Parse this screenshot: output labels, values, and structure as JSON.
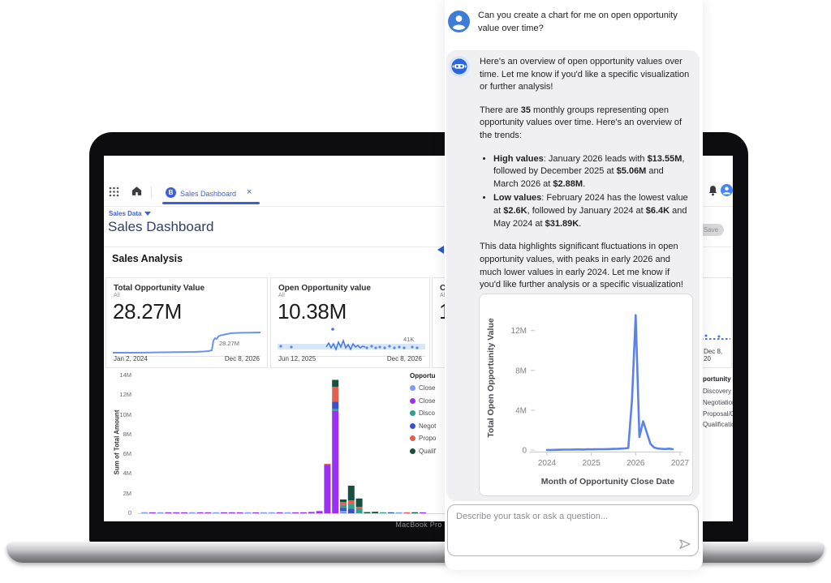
{
  "laptop": {
    "label": "MacBook Pro"
  },
  "dashboard": {
    "tab": {
      "label": "Sales Dashboard",
      "close": "×",
      "logo_letter": "B"
    },
    "breadcrumb": "Sales Data",
    "title": "Sales Dashboard",
    "save_label": "Save",
    "section_title": "Sales Analysis",
    "cards": [
      {
        "title": "Total Opportunity Value",
        "subtitle": "All",
        "value": "28.27M",
        "annotation": "28.27M",
        "date_start": "Jan 2, 2024",
        "date_end": "Dec 8, 2026"
      },
      {
        "title": "Open Opportunity value",
        "subtitle": "All",
        "value": "10.38M",
        "annotation": "41K",
        "date_start": "Jun 12, 2025",
        "date_end": "Dec 8, 2026"
      },
      {
        "title": "Cl",
        "subtitle": "All",
        "value": "1"
      },
      {
        "date_end": "Dec 8, 20"
      }
    ],
    "legend2_title": "portunity S",
    "legend2_items": [
      "Discovery",
      "Negotiation",
      "Proposal/Q",
      "Qualification"
    ]
  },
  "chat": {
    "user_message": "Can you create a chart for me on open opportunity value over time?",
    "bot_intro": "Here's an overview of open opportunity values over time. Let me know if you'd like a specific visualization or further analysis!",
    "overview_runs": [
      {
        "t": "There are ",
        "b": false
      },
      {
        "t": "35",
        "b": true
      },
      {
        "t": " monthly groups representing open opportunity values over time. Here's an overview of the trends:",
        "b": false
      }
    ],
    "bullets": [
      {
        "runs": [
          {
            "t": "High values",
            "b": true
          },
          {
            "t": ": January 2026 leads with ",
            "b": false
          },
          {
            "t": "$13.55M",
            "b": true
          },
          {
            "t": ", followed by December 2025 at ",
            "b": false
          },
          {
            "t": "$5.06M",
            "b": true
          },
          {
            "t": " and March 2026 at ",
            "b": false
          },
          {
            "t": "$2.88M",
            "b": true
          },
          {
            "t": ".",
            "b": false
          }
        ]
      },
      {
        "runs": [
          {
            "t": "Low values",
            "b": true
          },
          {
            "t": ": February 2024 has the lowest value at ",
            "b": false
          },
          {
            "t": "$2.6K",
            "b": true
          },
          {
            "t": ", followed by January 2024 at ",
            "b": false
          },
          {
            "t": "$6.4K",
            "b": true
          },
          {
            "t": " and May 2024 at ",
            "b": false
          },
          {
            "t": "$31.89K",
            "b": true
          },
          {
            "t": ".",
            "b": false
          }
        ]
      }
    ],
    "closing": "This data highlights significant fluctuations in open opportunity values, with peaks in early 2026 and much lower values in early 2024. Let me know if you'd like further analysis or a specific visualization!",
    "input_placeholder": "Describe your task or ask a question..."
  },
  "chart_data": [
    {
      "type": "line",
      "name": "open-opportunity-over-time",
      "ylabel": "Total Open Opportunity Value",
      "xlabel": "Month of Opportunity Close Date",
      "x_ticks": [
        "2024",
        "2025",
        "2026",
        "2027"
      ],
      "y_ticks": [
        "0",
        "4M",
        "8M",
        "12M"
      ],
      "y_tick_vals": [
        0,
        4000000,
        8000000,
        12000000
      ],
      "ylim": [
        0,
        14500000
      ],
      "x_start": "2024-01",
      "color": "#5b82e8",
      "values": [
        6400,
        2600,
        15000,
        22000,
        31890,
        38000,
        42000,
        50000,
        55000,
        60000,
        52000,
        70000,
        65000,
        72000,
        80000,
        85000,
        90000,
        100000,
        110000,
        125000,
        140000,
        160000,
        200000,
        5060000,
        13550000,
        1300000,
        2880000,
        1750000,
        600000,
        250000,
        150000,
        120000,
        100000,
        140000,
        90000
      ]
    },
    {
      "type": "stacked-bar",
      "name": "sum-of-total-amount-by-month",
      "ylabel": "Sum of Total Amount",
      "y_ticks": [
        "0",
        "2M",
        "4M",
        "6M",
        "8M",
        "10M",
        "12M",
        "14M"
      ],
      "ylim_m": [
        0,
        14
      ],
      "legend_title": "Opportu",
      "colors": {
        "cl": "#7d9bf0",
        "cw": "#9b30f5",
        "dv": "#31a08c",
        "ng": "#3b4ecc",
        "pp": "#e2604f",
        "qf": "#17503f"
      },
      "legend": [
        {
          "c": "cl",
          "label": "Close"
        },
        {
          "c": "cw",
          "label": "Close"
        },
        {
          "c": "dv",
          "label": "Disco"
        },
        {
          "c": "ng",
          "label": "Negot"
        },
        {
          "c": "pp",
          "label": "Propo"
        },
        {
          "c": "qf",
          "label": "Qualif"
        }
      ],
      "bars": [
        {
          "v": 0.01,
          "c": "cl"
        },
        {
          "v": 0.02,
          "c": "cw"
        },
        {
          "v": 0.06,
          "c": "cl"
        },
        {
          "v": 0.05,
          "c": "cw"
        },
        {
          "v": 0.04,
          "c": "cw"
        },
        {
          "v": 0.05,
          "c": "cw"
        },
        {
          "v": 0.02,
          "c": "cl"
        },
        {
          "v": 0.03,
          "c": "cw"
        },
        {
          "v": 0.05,
          "c": "cw"
        },
        {
          "v": 0.03,
          "c": "cl"
        },
        {
          "v": 0.04,
          "c": "cw"
        },
        {
          "v": 0.05,
          "c": "cw"
        },
        {
          "v": 0.07,
          "c": "cw"
        },
        {
          "v": 0.04,
          "c": "cl"
        },
        {
          "v": 0.06,
          "c": "cw"
        },
        {
          "v": 0.05,
          "c": "cl"
        },
        {
          "v": 0.04,
          "c": "cl"
        },
        {
          "v": 0.08,
          "c": "cw"
        },
        {
          "v": 0.06,
          "c": "cl"
        },
        {
          "v": 0.09,
          "c": "cw"
        },
        {
          "v": 0.1,
          "c": "cw"
        },
        {
          "v": 0.13,
          "c": "cw"
        },
        {
          "v": 0.22,
          "c": "cw"
        },
        {
          "segs": [
            [
              "cw",
              4.9
            ],
            [
              "pp",
              0.12
            ]
          ]
        },
        {
          "segs": [
            [
              "cw",
              10.4
            ],
            [
              "dv",
              0.2
            ],
            [
              "ng",
              0.75
            ],
            [
              "pp",
              1.5
            ],
            [
              "qf",
              0.7
            ]
          ]
        },
        {
          "segs": [
            [
              "cl",
              0.25
            ],
            [
              "ng",
              0.3
            ],
            [
              "dv",
              0.3
            ],
            [
              "pp",
              0.3
            ],
            [
              "qf",
              0.25
            ]
          ]
        },
        {
          "segs": [
            [
              "ng",
              0.45
            ],
            [
              "dv",
              0.5
            ],
            [
              "pp",
              0.35
            ],
            [
              "qf",
              1.5
            ]
          ]
        },
        {
          "segs": [
            [
              "dv",
              0.45
            ],
            [
              "pp",
              0.2
            ],
            [
              "qf",
              0.85
            ]
          ]
        },
        {
          "v": 0.12,
          "c": "qf"
        },
        {
          "v": 0.15,
          "c": "qf"
        },
        {
          "v": 0.1,
          "c": "dv"
        },
        {
          "v": 0.07,
          "c": "ng"
        },
        {
          "v": 0.05,
          "c": "cl"
        },
        {
          "v": 0.06,
          "c": "pp"
        },
        {
          "v": 0.1,
          "c": "qf"
        },
        {
          "v": 0.05,
          "c": "cw"
        }
      ]
    },
    {
      "type": "sparkline",
      "name": "total-opportunity-sparkline",
      "color": "#6a93ee",
      "points": [
        [
          0,
          35
        ],
        [
          30,
          35
        ],
        [
          60,
          34.5
        ],
        [
          100,
          34
        ],
        [
          112,
          33.5
        ],
        [
          118,
          33
        ],
        [
          122,
          32
        ],
        [
          124,
          20
        ],
        [
          126,
          17
        ],
        [
          128,
          18
        ],
        [
          130,
          15
        ],
        [
          133,
          13.5
        ],
        [
          136,
          13
        ],
        [
          140,
          12
        ],
        [
          146,
          11
        ],
        [
          154,
          10.5
        ],
        [
          182,
          10
        ]
      ],
      "label_pos": [
        131,
        26
      ]
    },
    {
      "type": "dot-sparkline",
      "name": "open-opportunity-sparkline",
      "color": "#4577e0",
      "band_color": "#d8e6fa",
      "band": [
        24,
        7
      ],
      "wave": [
        [
          60,
          28
        ],
        [
          63,
          23
        ],
        [
          66,
          29
        ],
        [
          69,
          24
        ],
        [
          72,
          31
        ],
        [
          75,
          22
        ],
        [
          78,
          28
        ],
        [
          81,
          20
        ],
        [
          84,
          29
        ],
        [
          87,
          25
        ],
        [
          90,
          31
        ],
        [
          93,
          24
        ],
        [
          96,
          28
        ],
        [
          99,
          26
        ],
        [
          102,
          29
        ],
        [
          105,
          27
        ],
        [
          108,
          28
        ]
      ],
      "dots": [
        [
          4,
          27
        ],
        [
          17,
          28
        ],
        [
          110,
          29
        ],
        [
          116,
          27
        ],
        [
          121,
          29
        ],
        [
          126,
          28
        ],
        [
          132,
          29
        ],
        [
          138,
          27
        ],
        [
          144,
          29
        ],
        [
          150,
          28
        ],
        [
          156,
          29
        ],
        [
          166,
          28
        ],
        [
          172,
          29
        ]
      ],
      "outlier": [
        68,
        6
      ],
      "label_pos": [
        155,
        21
      ]
    },
    {
      "type": "sparkline-fragment",
      "name": "card4-sparkline",
      "color": "#4577e0"
    }
  ]
}
